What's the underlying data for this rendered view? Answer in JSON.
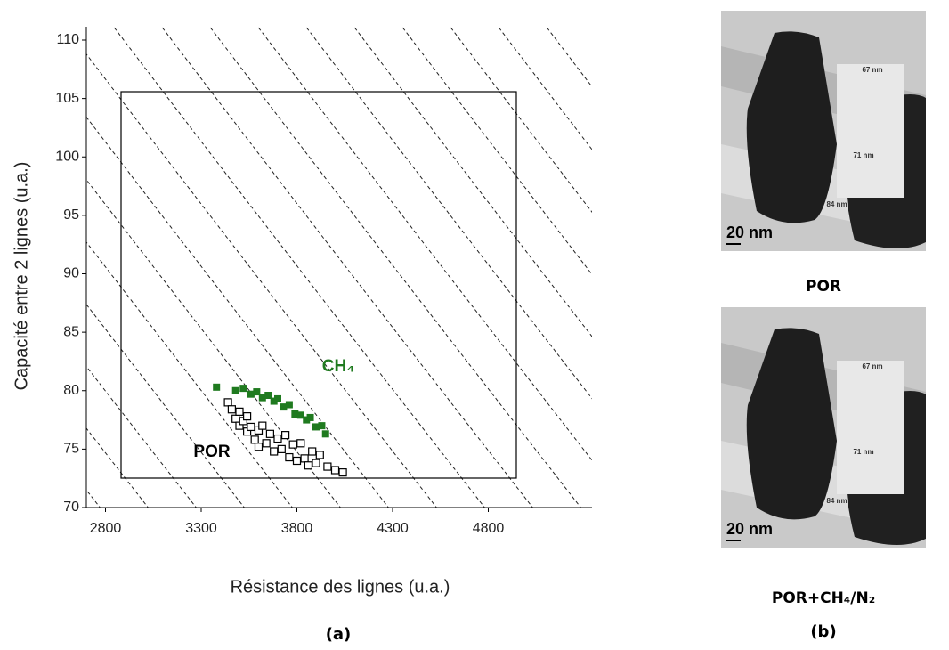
{
  "chart_data": {
    "type": "scatter",
    "xlabel": "Résistance des lignes (u.a.)",
    "ylabel": "Capacité entre 2 lignes (u.a.)",
    "xlim": [
      2700,
      5340
    ],
    "xticks": [
      2800,
      3300,
      3800,
      4300,
      4800
    ],
    "ylim": [
      70,
      110
    ],
    "yticks": [
      70,
      75,
      80,
      85,
      90,
      95,
      100,
      105,
      110
    ],
    "series": [
      {
        "name": "CH₄",
        "color": "#1f7a1f",
        "marker": "filled-square",
        "x": [
          3380,
          3480,
          3520,
          3560,
          3590,
          3620,
          3650,
          3680,
          3700,
          3730,
          3760,
          3790,
          3820,
          3850,
          3870,
          3900,
          3930,
          3950
        ],
        "y": [
          80.3,
          80.0,
          80.2,
          79.7,
          79.9,
          79.4,
          79.6,
          79.1,
          79.3,
          78.6,
          78.8,
          78.0,
          77.9,
          77.5,
          77.7,
          76.9,
          77.0,
          76.3
        ]
      },
      {
        "name": "POR",
        "color": "#000000",
        "marker": "open-square",
        "x": [
          3440,
          3460,
          3480,
          3500,
          3500,
          3520,
          3540,
          3540,
          3560,
          3580,
          3600,
          3600,
          3620,
          3640,
          3660,
          3680,
          3700,
          3720,
          3740,
          3760,
          3780,
          3800,
          3820,
          3840,
          3860,
          3880,
          3900,
          3920,
          3960,
          4000,
          4040
        ],
        "y": [
          79.0,
          78.4,
          77.6,
          78.2,
          77.0,
          77.4,
          76.5,
          77.8,
          76.9,
          75.8,
          76.6,
          75.2,
          77.0,
          75.5,
          76.3,
          74.8,
          75.9,
          75.0,
          76.2,
          74.3,
          75.4,
          74.0,
          75.5,
          74.2,
          73.6,
          74.8,
          73.8,
          74.5,
          73.5,
          73.2,
          73.0
        ]
      }
    ]
  },
  "panels": {
    "a": "(a)",
    "b": "(b)"
  },
  "images": [
    {
      "caption": "POR",
      "labels": [
        "67 nm",
        "71 nm",
        "84 nm"
      ],
      "scale_bar": "20 nm"
    },
    {
      "caption": "POR+CH₄/N₂",
      "labels": [
        "67 nm",
        "71 nm",
        "84 nm"
      ],
      "scale_bar": "20 nm"
    }
  ]
}
